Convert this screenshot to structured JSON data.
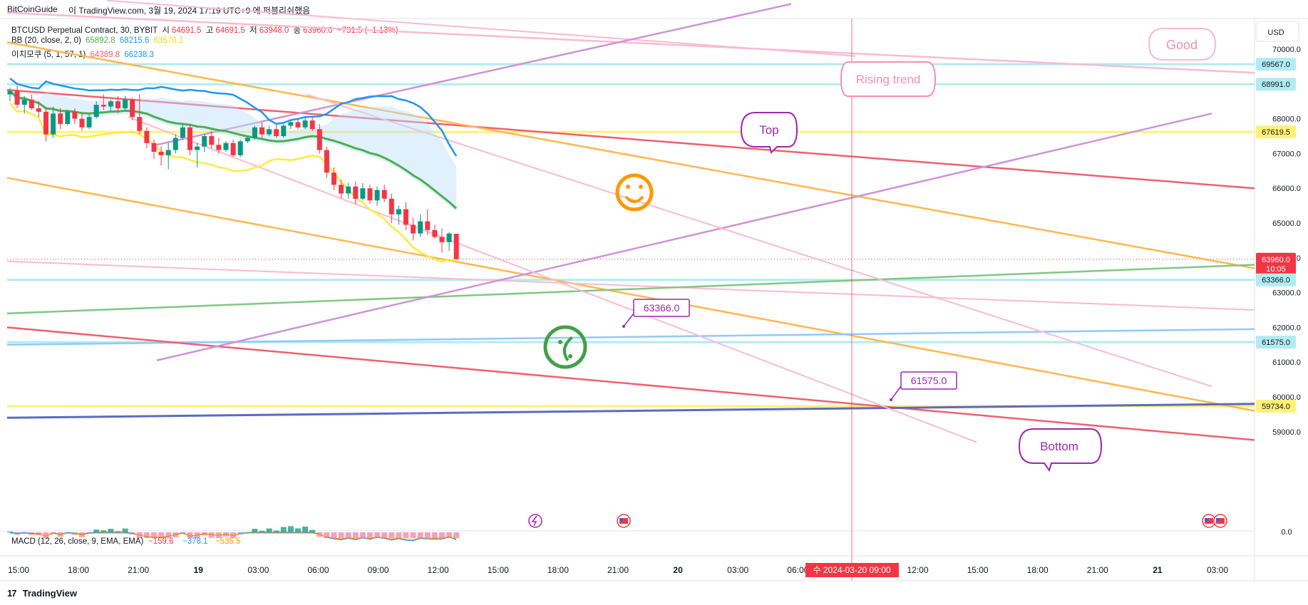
{
  "header": {
    "author": "BitCoinGuide",
    "rest": "이 TradingView.com, 3월 19, 2024 17:19 UTC+9 에 퍼블리쉬했음"
  },
  "legend": {
    "symbol": "BTCUSD Perpetual Contract, 30, BYBIT",
    "open_label": "시",
    "open": "64691.5",
    "high_label": "고",
    "high": "64691.5",
    "low_label": "저",
    "low": "63948.0",
    "close_label": "종",
    "close": "63960.0",
    "change": "−731.5 (−1.13%)",
    "bb_label": "BB (20, close, 2, 0)",
    "bb_basis": "65892.8",
    "bb_upper": "68215.6",
    "bb_lower": "63570.1",
    "ichimoku_label": "이치모쿠 (5, 1, 57, 1)",
    "ichimoku_a": "64389.8",
    "ichimoku_b": "66238.3",
    "macd_label": "MACD (12, 26, close, 9, EMA, EMA)",
    "macd_v1": "−159.6",
    "macd_v2": "−378.1",
    "macd_v3": "−535.5"
  },
  "currency": "USD",
  "annotations": {
    "good": "Good",
    "rising": "Rising trend",
    "top": "Top",
    "bottom": "Bottom",
    "price1": "63366.0",
    "price2": "61575.0"
  },
  "crosshair_date": "수 2024-03-20   09:00",
  "countdown": "10:05",
  "footer": "TradingView",
  "colors": {
    "up": "#089981",
    "down": "#f23645",
    "bb_basis": "#4caf50",
    "bb_upper": "#2196f3",
    "bb_lower": "#ffeb3b",
    "orange": "#ff9800",
    "purple": "#ba68c8",
    "pink": "#f48fb1",
    "red": "#f06070"
  },
  "chart_data": {
    "type": "candlestick",
    "x_ticks": [
      "15:00",
      "18:00",
      "21:00",
      "19",
      "03:00",
      "06:00",
      "09:00",
      "12:00",
      "15:00",
      "18:00",
      "21:00",
      "20",
      "03:00",
      "06:00",
      "09:00",
      "12:00",
      "15:00",
      "18:00",
      "21:00",
      "21",
      "03:00"
    ],
    "y_ticks": [
      "70000.0",
      "68000.0",
      "67000.0",
      "66000.0",
      "65000.0",
      "64000.0",
      "63000.0",
      "62000.0",
      "61000.0",
      "60000.0",
      "59000.0"
    ],
    "price_labels": [
      "69567.0",
      "68991.0",
      "67619.5",
      "63960.0",
      "63366.0",
      "61575.0",
      "59734.0"
    ],
    "macd_zero": "0.0",
    "ylim": [
      58500,
      71300
    ],
    "candles": [
      {
        "o": 68700,
        "h": 68900,
        "l": 68500,
        "c": 68800
      },
      {
        "o": 68800,
        "h": 68950,
        "l": 68300,
        "c": 68400
      },
      {
        "o": 68400,
        "h": 68650,
        "l": 68150,
        "c": 68550
      },
      {
        "o": 68550,
        "h": 68700,
        "l": 68250,
        "c": 68300
      },
      {
        "o": 68300,
        "h": 68500,
        "l": 68050,
        "c": 68200
      },
      {
        "o": 68200,
        "h": 68300,
        "l": 67350,
        "c": 67550
      },
      {
        "o": 67550,
        "h": 68350,
        "l": 67450,
        "c": 68150
      },
      {
        "o": 68150,
        "h": 68300,
        "l": 67700,
        "c": 67850
      },
      {
        "o": 67850,
        "h": 68250,
        "l": 67800,
        "c": 68200
      },
      {
        "o": 68200,
        "h": 68300,
        "l": 67850,
        "c": 68000
      },
      {
        "o": 68000,
        "h": 68150,
        "l": 67650,
        "c": 67750
      },
      {
        "o": 67750,
        "h": 68150,
        "l": 67700,
        "c": 68050
      },
      {
        "o": 68050,
        "h": 68500,
        "l": 68000,
        "c": 68400
      },
      {
        "o": 68400,
        "h": 68700,
        "l": 68250,
        "c": 68350
      },
      {
        "o": 68350,
        "h": 68550,
        "l": 68200,
        "c": 68500
      },
      {
        "o": 68500,
        "h": 68650,
        "l": 68150,
        "c": 68300
      },
      {
        "o": 68300,
        "h": 68650,
        "l": 68250,
        "c": 68550
      },
      {
        "o": 68550,
        "h": 68600,
        "l": 67950,
        "c": 68050
      },
      {
        "o": 68050,
        "h": 68700,
        "l": 67550,
        "c": 67650
      },
      {
        "o": 67650,
        "h": 67750,
        "l": 67150,
        "c": 67300
      },
      {
        "o": 67300,
        "h": 67400,
        "l": 66850,
        "c": 67050
      },
      {
        "o": 67050,
        "h": 67200,
        "l": 66650,
        "c": 66950
      },
      {
        "o": 66950,
        "h": 67300,
        "l": 66550,
        "c": 67100
      },
      {
        "o": 67100,
        "h": 67550,
        "l": 67000,
        "c": 67450
      },
      {
        "o": 67450,
        "h": 67850,
        "l": 67400,
        "c": 67750
      },
      {
        "o": 67750,
        "h": 67850,
        "l": 66950,
        "c": 67100
      },
      {
        "o": 67100,
        "h": 67300,
        "l": 66600,
        "c": 67200
      },
      {
        "o": 67200,
        "h": 67550,
        "l": 67050,
        "c": 67500
      },
      {
        "o": 67500,
        "h": 67650,
        "l": 67150,
        "c": 67250
      },
      {
        "o": 67250,
        "h": 67450,
        "l": 67000,
        "c": 67100
      },
      {
        "o": 67100,
        "h": 67350,
        "l": 67050,
        "c": 67300
      },
      {
        "o": 67300,
        "h": 67400,
        "l": 66900,
        "c": 66950
      },
      {
        "o": 66950,
        "h": 67400,
        "l": 66900,
        "c": 67350
      },
      {
        "o": 67350,
        "h": 67500,
        "l": 67300,
        "c": 67450
      },
      {
        "o": 67450,
        "h": 67800,
        "l": 67400,
        "c": 67750
      },
      {
        "o": 67750,
        "h": 67900,
        "l": 67450,
        "c": 67550
      },
      {
        "o": 67550,
        "h": 67800,
        "l": 67500,
        "c": 67700
      },
      {
        "o": 67700,
        "h": 67850,
        "l": 67450,
        "c": 67500
      },
      {
        "o": 67500,
        "h": 67850,
        "l": 67450,
        "c": 67800
      },
      {
        "o": 67800,
        "h": 67950,
        "l": 67700,
        "c": 67900
      },
      {
        "o": 67900,
        "h": 68000,
        "l": 67700,
        "c": 67750
      },
      {
        "o": 67750,
        "h": 68050,
        "l": 67700,
        "c": 67950
      },
      {
        "o": 67950,
        "h": 68050,
        "l": 67650,
        "c": 67700
      },
      {
        "o": 67700,
        "h": 67850,
        "l": 67000,
        "c": 67100
      },
      {
        "o": 67100,
        "h": 67200,
        "l": 66300,
        "c": 66450
      },
      {
        "o": 66450,
        "h": 66600,
        "l": 65950,
        "c": 66100
      },
      {
        "o": 66100,
        "h": 66250,
        "l": 65700,
        "c": 65850
      },
      {
        "o": 65850,
        "h": 66150,
        "l": 65700,
        "c": 66050
      },
      {
        "o": 66050,
        "h": 66200,
        "l": 65550,
        "c": 65700
      },
      {
        "o": 65700,
        "h": 66150,
        "l": 65650,
        "c": 66000
      },
      {
        "o": 66000,
        "h": 66100,
        "l": 65550,
        "c": 65650
      },
      {
        "o": 65650,
        "h": 66050,
        "l": 65500,
        "c": 65950
      },
      {
        "o": 65950,
        "h": 66100,
        "l": 65600,
        "c": 65700
      },
      {
        "o": 65700,
        "h": 65850,
        "l": 65000,
        "c": 65250
      },
      {
        "o": 65250,
        "h": 65500,
        "l": 64950,
        "c": 65400
      },
      {
        "o": 65400,
        "h": 65600,
        "l": 64800,
        "c": 64950
      },
      {
        "o": 64950,
        "h": 65150,
        "l": 64500,
        "c": 64700
      },
      {
        "o": 64700,
        "h": 65250,
        "l": 64600,
        "c": 65050
      },
      {
        "o": 65050,
        "h": 65400,
        "l": 64650,
        "c": 64800
      },
      {
        "o": 64800,
        "h": 64950,
        "l": 64550,
        "c": 64600
      },
      {
        "o": 64600,
        "h": 64850,
        "l": 64150,
        "c": 64450
      },
      {
        "o": 64450,
        "h": 64750,
        "l": 64200,
        "c": 64700
      },
      {
        "o": 64691.5,
        "h": 64691.5,
        "l": 63948,
        "c": 63960
      }
    ]
  }
}
